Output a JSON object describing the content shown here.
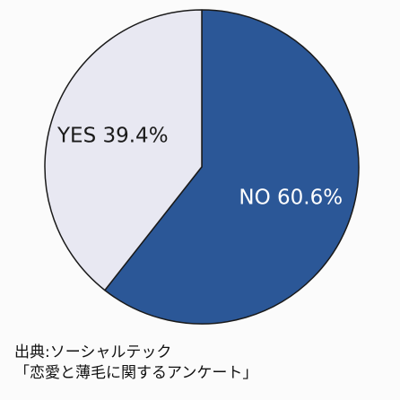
{
  "chart_data": {
    "type": "pie",
    "start_angle_deg": 0,
    "direction": "clockwise",
    "slices": [
      {
        "label": "NO",
        "value": 60.6,
        "display": "NO 60.6%",
        "color": "#2b5797",
        "label_color": "#ffffff"
      },
      {
        "label": "YES",
        "value": 39.4,
        "display": "YES 39.4%",
        "color": "#e8e8f2",
        "label_color": "#1a1a1a"
      }
    ],
    "outline_color": "#1a1a1a"
  },
  "source": {
    "line1": "出典:ソーシャルテック",
    "line2": "「恋愛と薄毛に関するアンケート」"
  }
}
